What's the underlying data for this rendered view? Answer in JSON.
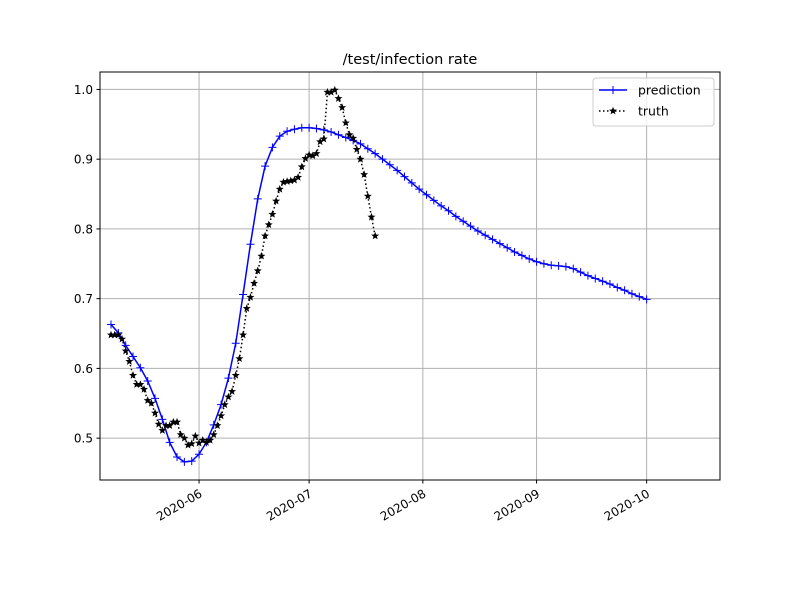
{
  "chart_data": {
    "type": "line",
    "title": "/test/infection rate",
    "xlabel": "",
    "ylabel": "",
    "grid": true,
    "legend_position": "top-right",
    "x_ticks": [
      "2020-06",
      "2020-07",
      "2020-08",
      "2020-09",
      "2020-10"
    ],
    "y_ticks": [
      "0.5",
      "0.6",
      "0.7",
      "0.8",
      "0.9",
      "1.0"
    ],
    "xlim": [
      "2020-05-05",
      "2020-10-21"
    ],
    "ylim": [
      0.44,
      1.025
    ],
    "series": [
      {
        "name": "prediction",
        "color": "#0000ff",
        "marker": "plus",
        "linestyle": "solid",
        "points": [
          [
            "2020-05-08",
            0.663
          ],
          [
            "2020-05-10",
            0.651
          ],
          [
            "2020-05-12",
            0.633
          ],
          [
            "2020-05-14",
            0.617
          ],
          [
            "2020-05-16",
            0.601
          ],
          [
            "2020-05-18",
            0.582
          ],
          [
            "2020-05-20",
            0.557
          ],
          [
            "2020-05-22",
            0.527
          ],
          [
            "2020-05-24",
            0.494
          ],
          [
            "2020-05-26",
            0.473
          ],
          [
            "2020-05-28",
            0.466
          ],
          [
            "2020-05-30",
            0.467
          ],
          [
            "2020-06-01",
            0.477
          ],
          [
            "2020-06-03",
            0.494
          ],
          [
            "2020-06-05",
            0.519
          ],
          [
            "2020-06-07",
            0.548
          ],
          [
            "2020-06-09",
            0.586
          ],
          [
            "2020-06-11",
            0.636
          ],
          [
            "2020-06-13",
            0.706
          ],
          [
            "2020-06-15",
            0.778
          ],
          [
            "2020-06-17",
            0.843
          ],
          [
            "2020-06-19",
            0.89
          ],
          [
            "2020-06-21",
            0.917
          ],
          [
            "2020-06-23",
            0.933
          ],
          [
            "2020-06-25",
            0.94
          ],
          [
            "2020-06-27",
            0.943
          ],
          [
            "2020-06-29",
            0.945
          ],
          [
            "2020-07-01",
            0.945
          ],
          [
            "2020-07-03",
            0.944
          ],
          [
            "2020-07-05",
            0.942
          ],
          [
            "2020-07-07",
            0.939
          ],
          [
            "2020-07-09",
            0.935
          ],
          [
            "2020-07-11",
            0.931
          ],
          [
            "2020-07-13",
            0.927
          ],
          [
            "2020-07-15",
            0.922
          ],
          [
            "2020-07-17",
            0.915
          ],
          [
            "2020-07-19",
            0.908
          ],
          [
            "2020-07-21",
            0.9
          ],
          [
            "2020-07-23",
            0.892
          ],
          [
            "2020-07-25",
            0.884
          ],
          [
            "2020-07-27",
            0.875
          ],
          [
            "2020-07-29",
            0.866
          ],
          [
            "2020-07-31",
            0.857
          ],
          [
            "2020-08-02",
            0.849
          ],
          [
            "2020-08-04",
            0.841
          ],
          [
            "2020-08-06",
            0.833
          ],
          [
            "2020-08-08",
            0.826
          ],
          [
            "2020-08-10",
            0.818
          ],
          [
            "2020-08-12",
            0.811
          ],
          [
            "2020-08-14",
            0.804
          ],
          [
            "2020-08-16",
            0.797
          ],
          [
            "2020-08-18",
            0.791
          ],
          [
            "2020-08-20",
            0.785
          ],
          [
            "2020-08-22",
            0.779
          ],
          [
            "2020-08-24",
            0.773
          ],
          [
            "2020-08-26",
            0.767
          ],
          [
            "2020-08-28",
            0.762
          ],
          [
            "2020-08-30",
            0.757
          ],
          [
            "2020-09-01",
            0.753
          ],
          [
            "2020-09-03",
            0.75
          ],
          [
            "2020-09-05",
            0.748
          ],
          [
            "2020-09-07",
            0.747
          ],
          [
            "2020-09-09",
            0.746
          ],
          [
            "2020-09-11",
            0.743
          ],
          [
            "2020-09-13",
            0.738
          ],
          [
            "2020-09-15",
            0.733
          ],
          [
            "2020-09-17",
            0.729
          ],
          [
            "2020-09-19",
            0.725
          ],
          [
            "2020-09-21",
            0.721
          ],
          [
            "2020-09-23",
            0.716
          ],
          [
            "2020-09-25",
            0.712
          ],
          [
            "2020-09-27",
            0.707
          ],
          [
            "2020-09-29",
            0.703
          ],
          [
            "2020-10-01",
            0.699
          ]
        ]
      },
      {
        "name": "truth",
        "color": "#000000",
        "marker": "star",
        "linestyle": "dotted",
        "points": [
          [
            "2020-05-08",
            0.648
          ],
          [
            "2020-05-09",
            0.648
          ],
          [
            "2020-05-10",
            0.648
          ],
          [
            "2020-05-11",
            0.642
          ],
          [
            "2020-05-12",
            0.625
          ],
          [
            "2020-05-13",
            0.61
          ],
          [
            "2020-05-14",
            0.59
          ],
          [
            "2020-05-15",
            0.577
          ],
          [
            "2020-05-16",
            0.577
          ],
          [
            "2020-05-17",
            0.57
          ],
          [
            "2020-05-18",
            0.554
          ],
          [
            "2020-05-19",
            0.55
          ],
          [
            "2020-05-20",
            0.536
          ],
          [
            "2020-05-21",
            0.52
          ],
          [
            "2020-05-22",
            0.511
          ],
          [
            "2020-05-23",
            0.518
          ],
          [
            "2020-05-24",
            0.518
          ],
          [
            "2020-05-25",
            0.523
          ],
          [
            "2020-05-26",
            0.523
          ],
          [
            "2020-05-27",
            0.505
          ],
          [
            "2020-05-28",
            0.5
          ],
          [
            "2020-05-29",
            0.49
          ],
          [
            "2020-05-30",
            0.492
          ],
          [
            "2020-05-31",
            0.503
          ],
          [
            "2020-06-01",
            0.493
          ],
          [
            "2020-06-02",
            0.497
          ],
          [
            "2020-06-03",
            0.494
          ],
          [
            "2020-06-04",
            0.497
          ],
          [
            "2020-06-05",
            0.505
          ],
          [
            "2020-06-06",
            0.518
          ],
          [
            "2020-06-07",
            0.532
          ],
          [
            "2020-06-08",
            0.548
          ],
          [
            "2020-06-09",
            0.559
          ],
          [
            "2020-06-10",
            0.567
          ],
          [
            "2020-06-11",
            0.59
          ],
          [
            "2020-06-12",
            0.614
          ],
          [
            "2020-06-13",
            0.648
          ],
          [
            "2020-06-14",
            0.686
          ],
          [
            "2020-06-15",
            0.702
          ],
          [
            "2020-06-16",
            0.722
          ],
          [
            "2020-06-17",
            0.74
          ],
          [
            "2020-06-18",
            0.761
          ],
          [
            "2020-06-19",
            0.79
          ],
          [
            "2020-06-20",
            0.806
          ],
          [
            "2020-06-21",
            0.821
          ],
          [
            "2020-06-22",
            0.84
          ],
          [
            "2020-06-23",
            0.857
          ],
          [
            "2020-06-24",
            0.867
          ],
          [
            "2020-06-25",
            0.868
          ],
          [
            "2020-06-26",
            0.869
          ],
          [
            "2020-06-27",
            0.87
          ],
          [
            "2020-06-28",
            0.874
          ],
          [
            "2020-06-29",
            0.889
          ],
          [
            "2020-06-30",
            0.901
          ],
          [
            "2020-07-01",
            0.906
          ],
          [
            "2020-07-02",
            0.905
          ],
          [
            "2020-07-03",
            0.908
          ],
          [
            "2020-07-04",
            0.925
          ],
          [
            "2020-07-05",
            0.929
          ],
          [
            "2020-07-06",
            0.996
          ],
          [
            "2020-07-07",
            0.996
          ],
          [
            "2020-07-08",
            0.999
          ],
          [
            "2020-07-09",
            0.987
          ],
          [
            "2020-07-10",
            0.974
          ],
          [
            "2020-07-11",
            0.952
          ],
          [
            "2020-07-12",
            0.935
          ],
          [
            "2020-07-13",
            0.93
          ],
          [
            "2020-07-14",
            0.914
          ],
          [
            "2020-07-15",
            0.9
          ],
          [
            "2020-07-16",
            0.878
          ],
          [
            "2020-07-17",
            0.847
          ],
          [
            "2020-07-18",
            0.817
          ],
          [
            "2020-07-19",
            0.79
          ]
        ]
      }
    ]
  }
}
